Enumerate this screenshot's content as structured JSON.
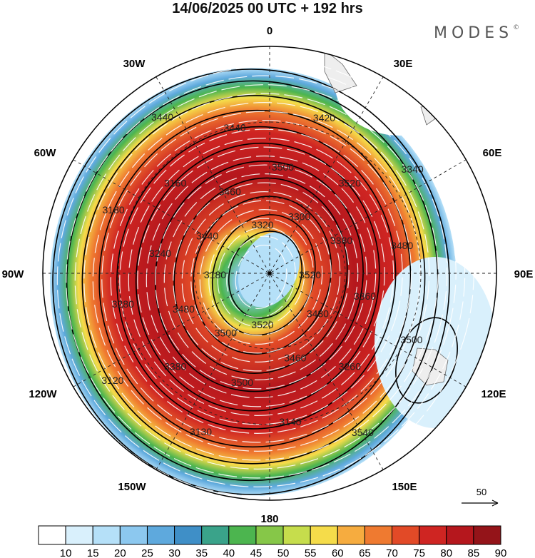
{
  "title": "14/06/2025  00 UTC  + 192 hrs",
  "brand": "MODES",
  "brand_mark": "©",
  "longitude_labels": [
    "0",
    "30E",
    "60E",
    "90E",
    "120E",
    "150E",
    "180",
    "150W",
    "120W",
    "90W",
    "60W",
    "30W"
  ],
  "reference_vector": {
    "label": "50"
  },
  "colorbar": {
    "ticks": [
      "10",
      "15",
      "20",
      "25",
      "30",
      "35",
      "40",
      "45",
      "50",
      "55",
      "60",
      "65",
      "70",
      "75",
      "80",
      "85",
      "90"
    ],
    "colors": [
      "#ffffff",
      "#d9f0fc",
      "#b5e0f8",
      "#8cc8ef",
      "#5ea9dd",
      "#3f8fc7",
      "#3aa38a",
      "#4cb54f",
      "#86c748",
      "#c6dd4c",
      "#f5dc4a",
      "#f6ac3f",
      "#ef7a30",
      "#e24a27",
      "#cf2522",
      "#b5171d",
      "#941419"
    ]
  },
  "contour_labels": [
    "3520",
    "3480",
    "3460",
    "3500",
    "3380",
    "3280",
    "3180",
    "3440",
    "3320",
    "3300",
    "3380",
    "3360",
    "3260",
    "3140",
    "3130",
    "3120",
    "3180",
    "3440",
    "3460",
    "3500",
    "3520",
    "3480",
    "3500",
    "3540",
    "3520",
    "3500",
    "3480",
    "3240",
    "3160",
    "3440",
    "3420",
    "3340"
  ],
  "map": {
    "projection": "polar stereographic (south pole)",
    "boundary_latitude": -20,
    "field": "wind speed with streamlines and geopotential height contours"
  }
}
